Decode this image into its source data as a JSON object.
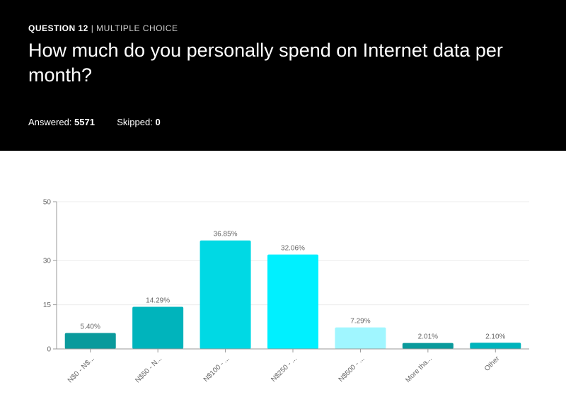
{
  "question": {
    "number_label": "QUESTION 12",
    "separator": "|",
    "type_label": "MULTIPLE CHOICE",
    "title": "How much do you personally spend on Internet data per month?"
  },
  "stats": {
    "answered_label": "Answered:",
    "answered_value": "5571",
    "skipped_label": "Skipped:",
    "skipped_value": "0"
  },
  "colors": {
    "header_bg": "#000000",
    "bars": [
      "#0a9a9c",
      "#00b4bc",
      "#00d9e4",
      "#00f0ff",
      "#a0f6ff",
      "#0a9a9c",
      "#00b4bc"
    ]
  },
  "chart_data": {
    "type": "bar",
    "categories": [
      "N$0 - N$...",
      "N$50 - N...",
      "N$100 - ...",
      "N$250 - ...",
      "N$500 - ...",
      "More tha...",
      "Other"
    ],
    "values": [
      5.4,
      14.29,
      36.85,
      32.06,
      7.29,
      2.01,
      2.1
    ],
    "value_labels": [
      "5.40%",
      "14.29%",
      "36.85%",
      "32.06%",
      "7.29%",
      "2.01%",
      "2.10%"
    ],
    "yticks": [
      0,
      15,
      30,
      50
    ],
    "ylim": [
      0,
      50
    ],
    "grid": true
  }
}
